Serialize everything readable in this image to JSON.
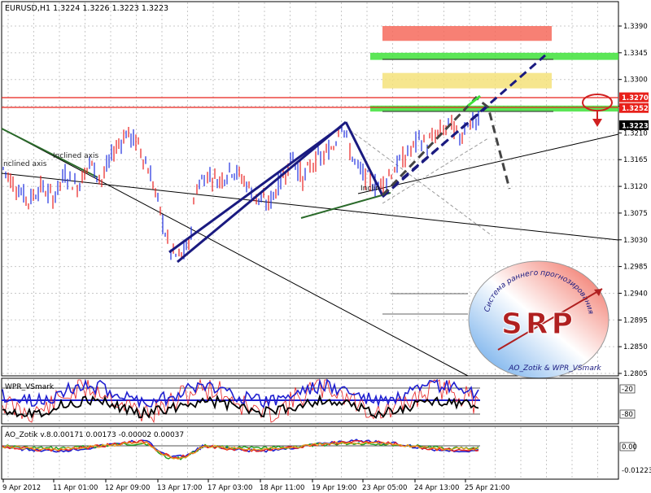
{
  "chart_data": [
    {
      "type": "candlestick",
      "symbol_header": "EURUSD,H1  1.3224 1.3226 1.3223 1.3223",
      "y_ticks": [
        "1.3390",
        "1.3345",
        "1.3300",
        "1.3255",
        "1.3210",
        "1.3165",
        "1.3120",
        "1.3075",
        "1.3030",
        "1.2985",
        "1.2940",
        "1.2895",
        "1.2850",
        "1.2805"
      ],
      "ylim": [
        1.279,
        1.343
      ],
      "price_tags": [
        {
          "label": "1.3270",
          "value": 1.327,
          "color": "#e8201a"
        },
        {
          "label": "1.3252",
          "value": 1.3252,
          "color": "#e8201a"
        },
        {
          "label": "1.3223",
          "value": 1.3223,
          "color": "#000000"
        }
      ],
      "x_labels": [
        "9 Apr 2012",
        "11 Apr 01:00",
        "12 Apr 09:00",
        "13 Apr 17:00",
        "17 Apr 03:00",
        "18 Apr 11:00",
        "19 Apr 19:00",
        "23 Apr 05:00",
        "24 Apr 13:00",
        "25 Apr 21:00"
      ],
      "zones": [
        {
          "name": "red-zone",
          "low": 1.3365,
          "high": 1.339,
          "color": "#f66a5c"
        },
        {
          "name": "green-zone-upper",
          "low": 1.3333,
          "high": 1.3345,
          "color": "#3fe23a"
        },
        {
          "name": "yellow-zone",
          "low": 1.3285,
          "high": 1.3311,
          "color": "#f4e27a"
        },
        {
          "name": "green-zone-lower",
          "low": 1.3246,
          "high": 1.3256,
          "color": "#3fe23a"
        }
      ],
      "trendline_labels": [
        "Inclined axis",
        "nclined axis",
        "Inclin"
      ],
      "colors": {
        "bull": "#2030e0",
        "bear": "#e82020",
        "channel": "#1a1a80",
        "forecast": "#333333"
      }
    },
    {
      "type": "line",
      "title": "WPR_VSmark",
      "levels": [
        {
          "label": "-20",
          "value": -20
        },
        {
          "label": "-80",
          "value": -80
        }
      ]
    },
    {
      "type": "line",
      "title": "AO_Zotik v.8.0.00171 0.00173 -0.00002 0.00037",
      "levels": [
        {
          "label": "0.00",
          "value": 0
        },
        {
          "label": "-0.01223",
          "value": -0.01223
        }
      ]
    }
  ],
  "logo": {
    "letters": "SRP",
    "arc_text": "Система раннего прогнозирования",
    "footer": "AO_Zotik & WPR_VSmark"
  }
}
